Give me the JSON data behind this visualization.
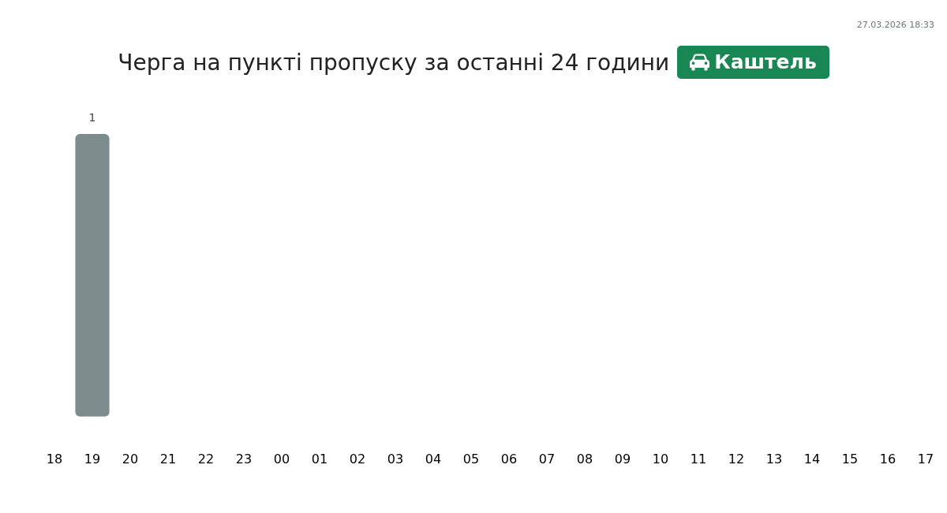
{
  "chart_data": {
    "type": "bar",
    "title": "Черга на пункті пропуску за останні 24 години",
    "subtitle": "Каштель",
    "annotations": [
      "27.03.2026 18:33"
    ],
    "categories": [
      "18",
      "19",
      "20",
      "21",
      "22",
      "23",
      "00",
      "01",
      "02",
      "03",
      "04",
      "05",
      "06",
      "07",
      "08",
      "09",
      "10",
      "11",
      "12",
      "13",
      "14",
      "15",
      "16",
      "17"
    ],
    "values": [
      0,
      1,
      0,
      0,
      0,
      0,
      0,
      0,
      0,
      0,
      0,
      0,
      0,
      0,
      0,
      0,
      0,
      0,
      0,
      0,
      0,
      0,
      0,
      0
    ],
    "value_labels": [
      null,
      "1",
      null,
      null,
      null,
      null,
      null,
      null,
      null,
      null,
      null,
      null,
      null,
      null,
      null,
      null,
      null,
      null,
      null,
      null,
      null,
      null,
      null,
      null
    ],
    "color": "#7f8c8d"
  }
}
